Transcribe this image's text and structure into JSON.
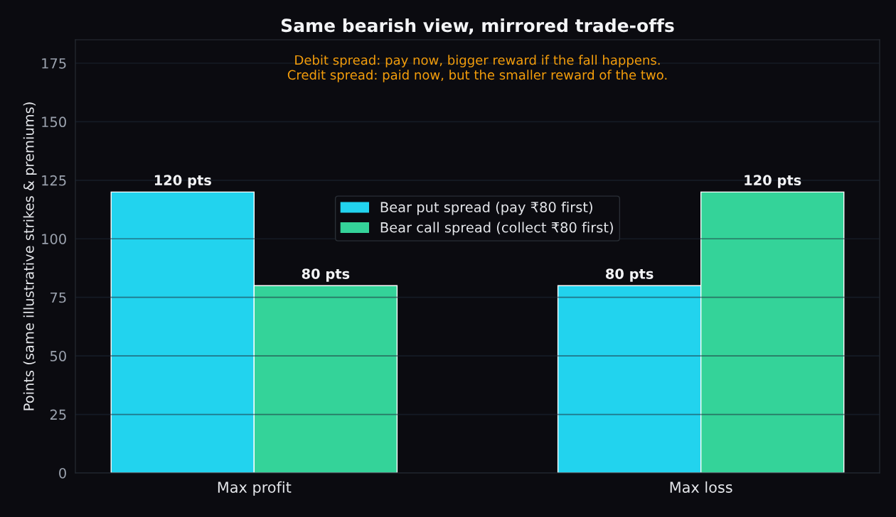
{
  "chart_data": {
    "type": "bar",
    "title": "Same bearish view, mirrored trade-offs",
    "ylabel": "Points (same illustrative strikes & premiums)",
    "annotations": [
      "Debit spread: pay now, bigger reward if the fall happens.\nCredit spread: paid now, but the smaller reward of the two."
    ],
    "categories": [
      "Max profit",
      "Max loss"
    ],
    "series": [
      {
        "name": "Bear put spread (pay ₹80 first)",
        "color": "#22d3ee",
        "values": [
          120,
          80
        ],
        "value_labels": [
          "120 pts",
          "80 pts"
        ]
      },
      {
        "name": "Bear call spread (collect ₹80 first)",
        "color": "#34d399",
        "values": [
          80,
          120
        ],
        "value_labels": [
          "80 pts",
          "120 pts"
        ]
      }
    ],
    "ylim": [
      0,
      185
    ],
    "yticks": [
      0,
      25,
      50,
      75,
      100,
      125,
      150,
      175
    ],
    "grid": "y",
    "legend": "top"
  }
}
